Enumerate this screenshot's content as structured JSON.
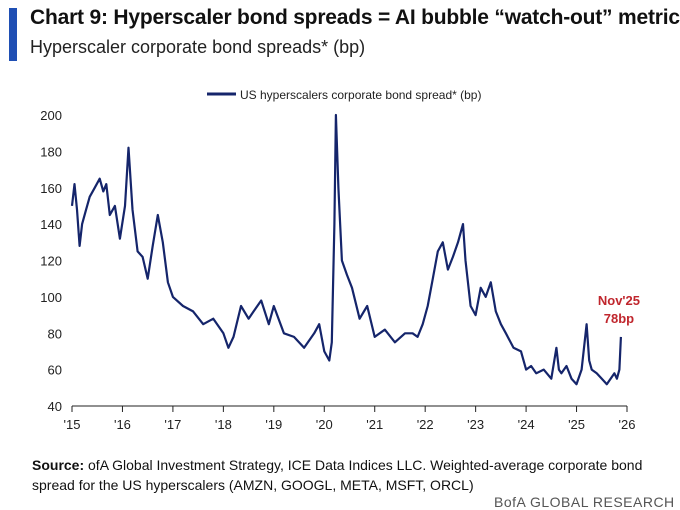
{
  "header": {
    "title": "Chart 9: Hyperscaler bond spreads = AI bubble “watch-out” metric",
    "subtitle": "Hyperscaler corporate bond spreads* (bp)",
    "accent_color": "#1f4fb4"
  },
  "chart_data": {
    "type": "line",
    "title": "Chart 9: Hyperscaler bond spreads = AI bubble “watch-out” metric",
    "subtitle": "Hyperscaler corporate bond spreads* (bp)",
    "xlabel": "",
    "ylabel": "",
    "ylim": [
      40,
      200
    ],
    "xlim": [
      2015.0,
      2026.0
    ],
    "y_ticks": [
      40,
      60,
      80,
      100,
      120,
      140,
      160,
      180,
      200
    ],
    "y_tick_labels": [
      "40",
      "60",
      "80",
      "100",
      "120",
      "140",
      "160",
      "180",
      "200"
    ],
    "x_ticks": [
      2015,
      2016,
      2017,
      2018,
      2019,
      2020,
      2021,
      2022,
      2023,
      2024,
      2025,
      2026
    ],
    "x_tick_labels": [
      "'15",
      "'16",
      "'17",
      "'18",
      "'19",
      "'20",
      "'21",
      "'22",
      "'23",
      "'24",
      "'25",
      "'26"
    ],
    "grid": false,
    "legend_position": "top-center",
    "series": [
      {
        "name": "US hyperscalers corporate bond spread* (bp)",
        "color": "#15256b",
        "x": [
          2015.0,
          2015.05,
          2015.1,
          2015.15,
          2015.2,
          2015.28,
          2015.35,
          2015.45,
          2015.55,
          2015.62,
          2015.68,
          2015.75,
          2015.85,
          2015.95,
          2016.05,
          2016.12,
          2016.2,
          2016.3,
          2016.4,
          2016.5,
          2016.6,
          2016.7,
          2016.8,
          2016.9,
          2017.0,
          2017.2,
          2017.4,
          2017.6,
          2017.8,
          2018.0,
          2018.1,
          2018.2,
          2018.35,
          2018.5,
          2018.6,
          2018.75,
          2018.9,
          2019.0,
          2019.2,
          2019.4,
          2019.6,
          2019.8,
          2019.9,
          2020.0,
          2020.1,
          2020.15,
          2020.2,
          2020.23,
          2020.28,
          2020.35,
          2020.45,
          2020.55,
          2020.7,
          2020.85,
          2021.0,
          2021.2,
          2021.4,
          2021.6,
          2021.75,
          2021.85,
          2021.95,
          2022.05,
          2022.15,
          2022.25,
          2022.35,
          2022.45,
          2022.55,
          2022.65,
          2022.75,
          2022.8,
          2022.9,
          2023.0,
          2023.1,
          2023.2,
          2023.3,
          2023.4,
          2023.5,
          2023.6,
          2023.75,
          2023.9,
          2024.0,
          2024.1,
          2024.2,
          2024.35,
          2024.5,
          2024.6,
          2024.65,
          2024.7,
          2024.8,
          2024.9,
          2025.0,
          2025.1,
          2025.2,
          2025.25,
          2025.3,
          2025.4,
          2025.5,
          2025.6,
          2025.7,
          2025.75,
          2025.8,
          2025.85,
          2025.88
        ],
        "y": [
          150,
          162,
          148,
          128,
          140,
          148,
          155,
          160,
          165,
          158,
          162,
          145,
          150,
          132,
          150,
          182,
          148,
          125,
          122,
          110,
          128,
          145,
          130,
          108,
          100,
          95,
          92,
          85,
          88,
          80,
          72,
          78,
          95,
          88,
          92,
          98,
          85,
          95,
          80,
          78,
          72,
          80,
          85,
          70,
          65,
          75,
          140,
          200,
          160,
          120,
          112,
          105,
          88,
          95,
          78,
          82,
          75,
          80,
          80,
          78,
          85,
          95,
          110,
          125,
          130,
          115,
          122,
          130,
          140,
          120,
          95,
          90,
          105,
          100,
          108,
          92,
          85,
          80,
          72,
          70,
          60,
          62,
          58,
          60,
          55,
          72,
          60,
          58,
          62,
          55,
          52,
          60,
          85,
          65,
          60,
          58,
          55,
          52,
          56,
          58,
          55,
          60,
          78
        ]
      }
    ],
    "annotations": [
      {
        "text_line1": "Nov'25",
        "text_line2": "78bp",
        "x": 2025.88,
        "y": 78,
        "color": "#c0262d"
      }
    ]
  },
  "source": {
    "label": "Source:",
    "text": "ofA Global Investment Strategy, ICE Data Indices LLC. Weighted-average corporate bond spread for the US hyperscalers (AMZN, GOOGL, META, MSFT, ORCL)"
  },
  "footer": {
    "brand": "BofA GLOBAL RESEARCH"
  }
}
